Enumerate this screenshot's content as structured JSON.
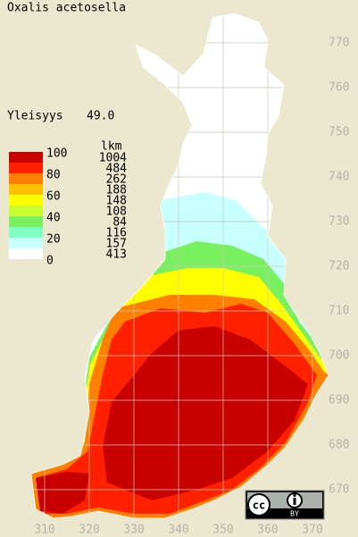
{
  "title": "Oxalis acetosella",
  "frequency": {
    "label": "Yleisyys",
    "value": "49.0"
  },
  "legend": {
    "class_labels": [
      100,
      80,
      60,
      40,
      20,
      0
    ],
    "colors": [
      "#c80000",
      "#ff2000",
      "#ff8000",
      "#ffc000",
      "#ffff00",
      "#c8ff30",
      "#78f060",
      "#80ffc0",
      "#c8ffff",
      "#ffffff"
    ],
    "count_header": "lkm",
    "counts": [
      1004,
      484,
      262,
      188,
      148,
      108,
      84,
      116,
      157,
      413
    ]
  },
  "northing_ticks": [
    770,
    760,
    750,
    740,
    730,
    720,
    710,
    700,
    690,
    680,
    670
  ],
  "easting_ticks": [
    310,
    320,
    330,
    340,
    350,
    360,
    370
  ],
  "license": {
    "icon": "cc",
    "terms": "BY"
  }
}
